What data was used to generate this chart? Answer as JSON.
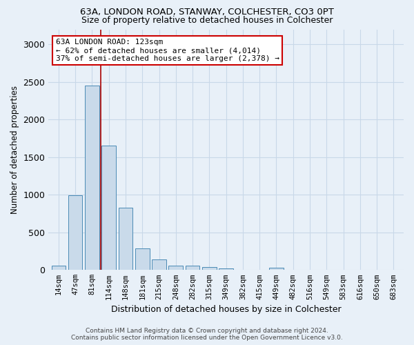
{
  "title1": "63A, LONDON ROAD, STANWAY, COLCHESTER, CO3 0PT",
  "title2": "Size of property relative to detached houses in Colchester",
  "xlabel": "Distribution of detached houses by size in Colchester",
  "ylabel": "Number of detached properties",
  "footer1": "Contains HM Land Registry data © Crown copyright and database right 2024.",
  "footer2": "Contains public sector information licensed under the Open Government Licence v3.0.",
  "bin_labels": [
    "14sqm",
    "47sqm",
    "81sqm",
    "114sqm",
    "148sqm",
    "181sqm",
    "215sqm",
    "248sqm",
    "282sqm",
    "315sqm",
    "349sqm",
    "382sqm",
    "415sqm",
    "449sqm",
    "482sqm",
    "516sqm",
    "549sqm",
    "583sqm",
    "616sqm",
    "650sqm",
    "683sqm"
  ],
  "bar_values": [
    60,
    990,
    2450,
    1650,
    830,
    290,
    140,
    55,
    55,
    40,
    20,
    0,
    0,
    30,
    0,
    0,
    0,
    0,
    0,
    0,
    0
  ],
  "bar_color": "#c9daea",
  "bar_edge_color": "#4a8ab5",
  "ylim": [
    0,
    3200
  ],
  "yticks": [
    0,
    500,
    1000,
    1500,
    2000,
    2500,
    3000
  ],
  "annotation_text": "63A LONDON ROAD: 123sqm\n← 62% of detached houses are smaller (4,014)\n37% of semi-detached houses are larger (2,378) →",
  "annotation_box_color": "#ffffff",
  "annotation_box_edge_color": "#cc0000",
  "vline_color": "#aa0000",
  "vline_x": 2.5,
  "grid_color": "#c8d8e8",
  "background_color": "#e8f0f8",
  "title1_fontsize": 9.5,
  "title2_fontsize": 9,
  "xlabel_fontsize": 9,
  "ylabel_fontsize": 8.5,
  "tick_fontsize": 7.5,
  "footer_fontsize": 6.5,
  "annotation_fontsize": 8
}
